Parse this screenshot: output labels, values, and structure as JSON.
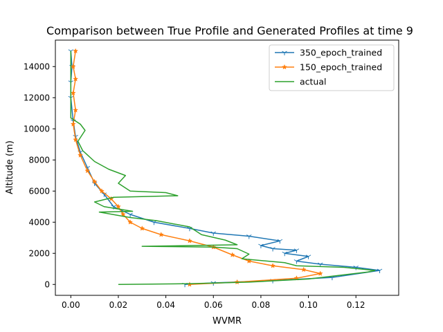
{
  "chart_data": {
    "type": "line",
    "title": "Comparison between True Profile and Generated Profiles at time 9",
    "xlabel": "WVMR",
    "ylabel": "Altitude (m)",
    "xlim": [
      -0.0065,
      0.138
    ],
    "ylim": [
      -700,
      15700
    ],
    "x_ticks": [
      "0.00",
      "0.02",
      "0.04",
      "0.06",
      "0.08",
      "0.10",
      "0.12"
    ],
    "x_tick_values": [
      0.0,
      0.02,
      0.04,
      0.06,
      0.08,
      0.1,
      0.12
    ],
    "y_ticks": [
      "0",
      "2000",
      "4000",
      "6000",
      "8000",
      "10000",
      "12000",
      "14000"
    ],
    "y_tick_values": [
      0,
      2000,
      4000,
      6000,
      8000,
      10000,
      12000,
      14000
    ],
    "grid": false,
    "legend_position": "top-right",
    "series": [
      {
        "name": "350_epoch_trained",
        "color": "#1f77b4",
        "marker": "tri-down",
        "points": [
          [
            0.048,
            0
          ],
          [
            0.06,
            100
          ],
          [
            0.085,
            250
          ],
          [
            0.11,
            450
          ],
          [
            0.13,
            900
          ],
          [
            0.12,
            1100
          ],
          [
            0.105,
            1300
          ],
          [
            0.095,
            1500
          ],
          [
            0.1,
            1800
          ],
          [
            0.09,
            2000
          ],
          [
            0.095,
            2200
          ],
          [
            0.085,
            2300
          ],
          [
            0.08,
            2500
          ],
          [
            0.088,
            2800
          ],
          [
            0.075,
            3100
          ],
          [
            0.06,
            3300
          ],
          [
            0.05,
            3600
          ],
          [
            0.035,
            4000
          ],
          [
            0.025,
            4500
          ],
          [
            0.018,
            5000
          ],
          [
            0.014,
            5800
          ],
          [
            0.01,
            6500
          ],
          [
            0.007,
            7500
          ],
          [
            0.004,
            8500
          ],
          [
            0.002,
            9500
          ],
          [
            0.001,
            10500
          ],
          [
            0.0,
            12000
          ],
          [
            0.0,
            13000
          ],
          [
            0.0005,
            14000
          ],
          [
            0.0,
            15000
          ]
        ]
      },
      {
        "name": "150_epoch_trained",
        "color": "#ff7f0e",
        "marker": "star",
        "points": [
          [
            0.05,
            0
          ],
          [
            0.07,
            150
          ],
          [
            0.095,
            400
          ],
          [
            0.105,
            700
          ],
          [
            0.098,
            950
          ],
          [
            0.085,
            1200
          ],
          [
            0.075,
            1500
          ],
          [
            0.068,
            1900
          ],
          [
            0.06,
            2400
          ],
          [
            0.05,
            2800
          ],
          [
            0.038,
            3200
          ],
          [
            0.03,
            3600
          ],
          [
            0.025,
            4000
          ],
          [
            0.022,
            4500
          ],
          [
            0.02,
            5000
          ],
          [
            0.017,
            5500
          ],
          [
            0.013,
            6000
          ],
          [
            0.01,
            6600
          ],
          [
            0.007,
            7300
          ],
          [
            0.004,
            8300
          ],
          [
            0.002,
            9300
          ],
          [
            0.001,
            10300
          ],
          [
            0.002,
            11200
          ],
          [
            0.001,
            12300
          ],
          [
            0.002,
            13200
          ],
          [
            0.001,
            14000
          ],
          [
            0.002,
            15000
          ]
        ]
      },
      {
        "name": "actual",
        "color": "#2ca02c",
        "marker": "none",
        "points": [
          [
            0.02,
            0
          ],
          [
            0.05,
            50
          ],
          [
            0.075,
            150
          ],
          [
            0.1,
            350
          ],
          [
            0.125,
            800
          ],
          [
            0.128,
            900
          ],
          [
            0.115,
            1100
          ],
          [
            0.095,
            1200
          ],
          [
            0.09,
            1400
          ],
          [
            0.072,
            1650
          ],
          [
            0.075,
            1950
          ],
          [
            0.07,
            2300
          ],
          [
            0.06,
            2400
          ],
          [
            0.03,
            2450
          ],
          [
            0.07,
            2550
          ],
          [
            0.065,
            2850
          ],
          [
            0.055,
            3200
          ],
          [
            0.05,
            3700
          ],
          [
            0.036,
            4100
          ],
          [
            0.025,
            4300
          ],
          [
            0.012,
            4650
          ],
          [
            0.026,
            4700
          ],
          [
            0.014,
            5000
          ],
          [
            0.01,
            5300
          ],
          [
            0.018,
            5600
          ],
          [
            0.045,
            5700
          ],
          [
            0.04,
            5900
          ],
          [
            0.025,
            6000
          ],
          [
            0.02,
            6500
          ],
          [
            0.023,
            7000
          ],
          [
            0.016,
            7400
          ],
          [
            0.01,
            7900
          ],
          [
            0.005,
            8600
          ],
          [
            0.003,
            9200
          ],
          [
            0.006,
            9900
          ],
          [
            0.004,
            10300
          ],
          [
            0.0,
            10700
          ],
          [
            0.0,
            11500
          ],
          [
            0.0,
            12500
          ],
          [
            0.0,
            13500
          ],
          [
            0.0,
            14500
          ],
          [
            0.0,
            15000
          ]
        ]
      }
    ]
  }
}
